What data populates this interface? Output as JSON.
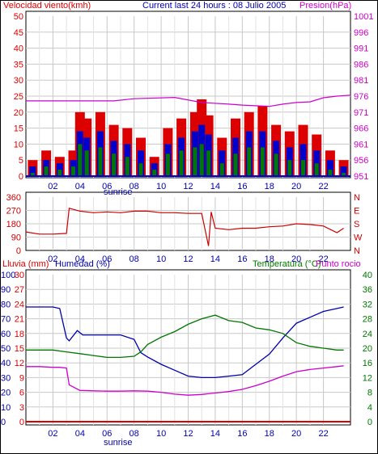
{
  "header": {
    "wind_title": "Velocidad viento(kmh)",
    "center_title": "Current last 24 hours : 08 Julio 2005",
    "pressure_title": "Presion(hPa)",
    "rain_title": "Lluvia (mm)",
    "humidity_title": "Humedad (%)",
    "temp_title": "Temperatura (°C)",
    "dew_title": "Punto rocio"
  },
  "x_ticks": [
    "02",
    "04",
    "06",
    "08",
    "10",
    "12",
    "14",
    "16",
    "18",
    "20",
    "22"
  ],
  "sunrise_label": "sunrise",
  "colors": {
    "wind_gust": "#dd0000",
    "wind_avg": "#0000cc",
    "wind_min": "#007700",
    "pressure": "#cc00cc",
    "direction": "#cc0000",
    "humidity": "#0000aa",
    "temperature": "#007700",
    "dewpoint": "#cc00cc",
    "rain": "#dd0000"
  },
  "chart_data": [
    {
      "type": "bar",
      "title": "Current last 24 hours : 08 Julio 2005",
      "ylabel": "Velocidad viento(kmh)",
      "y2label": "Presion(hPa)",
      "ylim": [
        0,
        50
      ],
      "y_ticks": [
        "0",
        "5",
        "10",
        "15",
        "20",
        "25",
        "30",
        "35",
        "40",
        "45",
        "50"
      ],
      "y2lim": [
        951,
        1001
      ],
      "y2_ticks": [
        "951",
        "956",
        "961",
        "966",
        "971",
        "976",
        "981",
        "986",
        "991",
        "996",
        "1001"
      ],
      "xlim": [
        0,
        24
      ],
      "x_tick_labels": [
        "02",
        "04",
        "06",
        "08",
        "10",
        "12",
        "14",
        "16",
        "18",
        "20",
        "22"
      ],
      "series": [
        {
          "name": "gust",
          "x": [
            0,
            1,
            2,
            3,
            3.5,
            4,
            5,
            6,
            7,
            8,
            9,
            10,
            11,
            12,
            12.5,
            13,
            14,
            15,
            16,
            17,
            18,
            19,
            20,
            21,
            22,
            23
          ],
          "values": [
            5,
            8,
            6,
            8,
            20,
            18,
            20,
            16,
            15,
            12,
            6,
            15,
            18,
            20,
            24,
            19,
            12,
            18,
            20,
            22,
            16,
            14,
            16,
            13,
            8,
            5
          ]
        },
        {
          "name": "avg",
          "x": [
            0,
            1,
            2,
            3,
            3.5,
            4,
            5,
            6,
            7,
            8,
            9,
            10,
            11,
            12,
            12.5,
            13,
            14,
            15,
            16,
            17,
            18,
            19,
            20,
            21,
            22,
            23
          ],
          "values": [
            3,
            5,
            4,
            5,
            14,
            12,
            14,
            11,
            10,
            8,
            4,
            10,
            12,
            14,
            16,
            13,
            8,
            12,
            14,
            14,
            11,
            9,
            10,
            8,
            5,
            3
          ]
        },
        {
          "name": "min",
          "x": [
            0,
            1,
            2,
            3,
            3.5,
            4,
            5,
            6,
            7,
            8,
            9,
            10,
            11,
            12,
            12.5,
            13,
            14,
            15,
            16,
            17,
            18,
            19,
            20,
            21,
            22,
            23
          ],
          "values": [
            1,
            3,
            2,
            3,
            10,
            8,
            9,
            7,
            6,
            4,
            2,
            7,
            8,
            9,
            10,
            8,
            4,
            7,
            9,
            9,
            7,
            5,
            5,
            4,
            2,
            1
          ]
        },
        {
          "name": "pressure",
          "x": [
            0,
            6.5,
            8,
            11,
            13,
            15,
            16,
            17,
            18,
            19,
            20,
            21,
            22,
            23,
            24
          ],
          "values": [
            974.5,
            974.5,
            975.2,
            975.6,
            974,
            973.5,
            973.2,
            973,
            972.8,
            973.5,
            974,
            974.2,
            975.5,
            976,
            976.3
          ]
        }
      ]
    },
    {
      "type": "line",
      "ylabel": "direction",
      "ylim": [
        0,
        360
      ],
      "y_ticks": [
        "0",
        "90",
        "180",
        "270",
        "360"
      ],
      "y2_ticks": [
        "N",
        "W",
        "S",
        "E",
        "N"
      ],
      "xlim": [
        0,
        24
      ],
      "series": [
        {
          "name": "direction",
          "x": [
            0,
            1,
            2,
            3,
            3.2,
            4,
            5,
            6,
            7,
            8,
            9,
            10,
            11,
            12,
            13,
            13.5,
            13.7,
            14,
            15,
            16,
            17,
            18,
            19,
            20,
            21,
            22,
            23,
            23.5
          ],
          "values": [
            125,
            110,
            110,
            115,
            285,
            265,
            255,
            260,
            255,
            265,
            265,
            255,
            255,
            250,
            250,
            30,
            260,
            150,
            140,
            150,
            150,
            160,
            165,
            180,
            175,
            165,
            120,
            150
          ]
        }
      ]
    },
    {
      "type": "line",
      "ylabel": "Humedad (%)",
      "y2label": "Temperatura (°C)",
      "ylim": [
        0,
        100
      ],
      "y_ticks": [
        "0",
        "10",
        "20",
        "30",
        "40",
        "50",
        "60",
        "70",
        "80",
        "90",
        "100"
      ],
      "rain_ticks": [
        "0",
        "3",
        "6",
        "9",
        "12",
        "15",
        "18",
        "21",
        "24",
        "27",
        "30"
      ],
      "y2lim": [
        0,
        40
      ],
      "y2_ticks": [
        "0",
        "4",
        "8",
        "12",
        "16",
        "20",
        "24",
        "28",
        "32",
        "36",
        "40"
      ],
      "xlim": [
        0,
        24
      ],
      "series": [
        {
          "name": "humidity",
          "x": [
            0,
            1,
            2,
            2.5,
            3,
            3.2,
            3.8,
            4.2,
            5,
            6,
            7,
            8,
            8.5,
            9,
            10,
            11,
            12,
            13,
            14,
            15,
            16,
            17,
            18,
            19,
            20,
            21,
            22,
            23,
            23.5
          ],
          "values": [
            78,
            78,
            78,
            77,
            57,
            55,
            62,
            59,
            59,
            59,
            59,
            56,
            47,
            44,
            39,
            35,
            31,
            30,
            30,
            31,
            32,
            39,
            46,
            57,
            67,
            71,
            75,
            77,
            78
          ]
        },
        {
          "name": "temperature",
          "x": [
            0,
            1,
            2,
            3,
            4,
            5,
            6,
            7,
            8,
            8.5,
            9,
            10,
            11,
            12,
            13,
            14,
            15,
            16,
            17,
            18,
            19,
            20,
            21,
            22,
            23,
            23.5
          ],
          "values": [
            19.5,
            19.5,
            19.5,
            19,
            18.5,
            18,
            17.5,
            17.5,
            17.8,
            19,
            21,
            23,
            24.5,
            26.5,
            28,
            29,
            27.5,
            27,
            25.5,
            25,
            24,
            21.5,
            20.5,
            20,
            19.5,
            19.5
          ]
        },
        {
          "name": "dewpoint",
          "x": [
            0,
            1,
            2,
            2.5,
            3,
            3.2,
            4,
            5,
            6,
            7,
            8,
            9,
            10,
            11,
            12,
            13,
            14,
            15,
            16,
            17,
            18,
            19,
            20,
            21,
            22,
            23,
            23.5
          ],
          "values": [
            15,
            15,
            14.8,
            14.8,
            14.6,
            10,
            8.5,
            8.4,
            8.3,
            8.3,
            8.4,
            8.3,
            8,
            7.5,
            7.2,
            7.4,
            7.8,
            8.2,
            8.8,
            9.8,
            11,
            12.4,
            13.6,
            14.2,
            14.6,
            15,
            15.2
          ]
        },
        {
          "name": "rain",
          "x": [
            0,
            24
          ],
          "values": [
            0,
            0
          ]
        }
      ]
    }
  ]
}
